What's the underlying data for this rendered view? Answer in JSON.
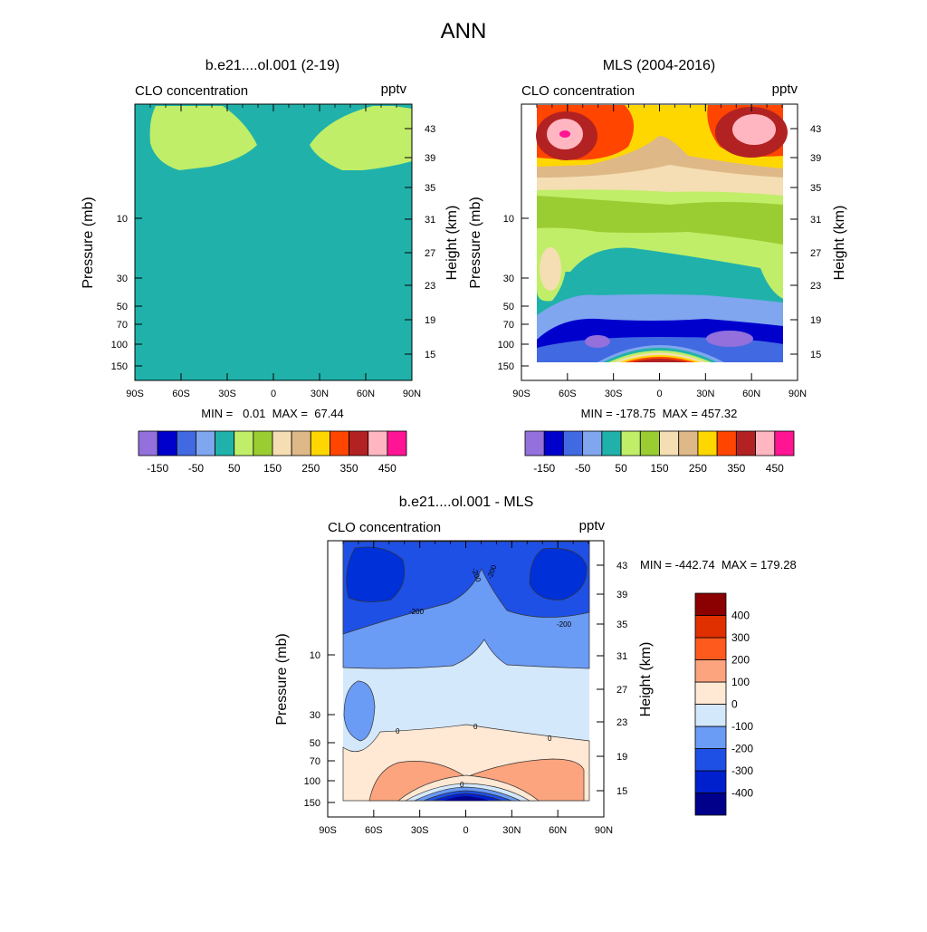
{
  "title": "ANN",
  "colors": {
    "top_scale": [
      "#9370DB",
      "#0000CD",
      "#4169E1",
      "#7FA6EE",
      "#20B2AA",
      "#C0EE68",
      "#9ACD32",
      "#F5DEB3",
      "#DEB887",
      "#FFD700",
      "#FF4500",
      "#B22222",
      "#FFB6C1",
      "#FF1493"
    ],
    "diff_scale": [
      "#00008B",
      "#0020CD",
      "#1E50E6",
      "#6A9BF5",
      "#D4E8FC",
      "#FFE8D4",
      "#FCA47E",
      "#FF5A1E",
      "#E03000",
      "#8B0000"
    ]
  },
  "chart_data": [
    {
      "type": "heatmap",
      "id": "model",
      "title": "b.e21....ol.001 (2-19)",
      "left_label": "CLO concentration",
      "right_label": "pptv",
      "ylabel": "Pressure (mb)",
      "ylabel_right": "Height (km)",
      "x_ticks": [
        "90S",
        "60S",
        "30S",
        "0",
        "30N",
        "60N",
        "90N"
      ],
      "y_ticks": [
        "10",
        "30",
        "50",
        "70",
        "100",
        "150"
      ],
      "height_ticks": [
        "43",
        "39",
        "35",
        "31",
        "27",
        "23",
        "19",
        "15"
      ],
      "stats": "MIN =   0.01  MAX =  67.44",
      "colorbar_labels": [
        "-150",
        "-50",
        "50",
        "150",
        "250",
        "350",
        "450"
      ],
      "colorbar_ticks": [
        -150,
        -100,
        -50,
        0,
        50,
        100,
        150,
        200,
        250,
        300,
        350,
        400,
        450
      ]
    },
    {
      "type": "heatmap",
      "id": "obs",
      "title": "MLS (2004-2016)",
      "left_label": "CLO concentration",
      "right_label": "pptv",
      "ylabel": "Pressure (mb)",
      "ylabel_right": "Height (km)",
      "x_ticks": [
        "90S",
        "60S",
        "30S",
        "0",
        "30N",
        "60N",
        "90N"
      ],
      "y_ticks": [
        "10",
        "30",
        "50",
        "70",
        "100",
        "150"
      ],
      "height_ticks": [
        "43",
        "39",
        "35",
        "31",
        "27",
        "23",
        "19",
        "15"
      ],
      "stats": "MIN = -178.75  MAX = 457.32",
      "colorbar_labels": [
        "-150",
        "-50",
        "50",
        "150",
        "250",
        "350",
        "450"
      ],
      "colorbar_ticks": [
        -150,
        -100,
        -50,
        0,
        50,
        100,
        150,
        200,
        250,
        300,
        350,
        400,
        450
      ]
    },
    {
      "type": "heatmap",
      "id": "diff",
      "title": "b.e21....ol.001 - MLS",
      "left_label": "CLO concentration",
      "right_label": "pptv",
      "ylabel": "Pressure (mb)",
      "ylabel_right": "Height (km)",
      "x_ticks": [
        "90S",
        "60S",
        "30S",
        "0",
        "30N",
        "60N",
        "90N"
      ],
      "y_ticks": [
        "10",
        "30",
        "50",
        "70",
        "100",
        "150"
      ],
      "height_ticks": [
        "43",
        "39",
        "35",
        "31",
        "27",
        "23",
        "19",
        "15"
      ],
      "stats": "MIN = -442.74  MAX = 179.28",
      "colorbar_labels": [
        "400",
        "300",
        "200",
        "100",
        "0",
        "-100",
        "-200",
        "-300",
        "-400"
      ],
      "colorbar_ticks": [
        -500,
        -400,
        -300,
        -200,
        -100,
        0,
        100,
        200,
        300,
        400,
        500
      ],
      "contour_labels": [
        "-200",
        "-200",
        "-200",
        "-200",
        "0",
        "0",
        "0",
        "0"
      ]
    }
  ]
}
